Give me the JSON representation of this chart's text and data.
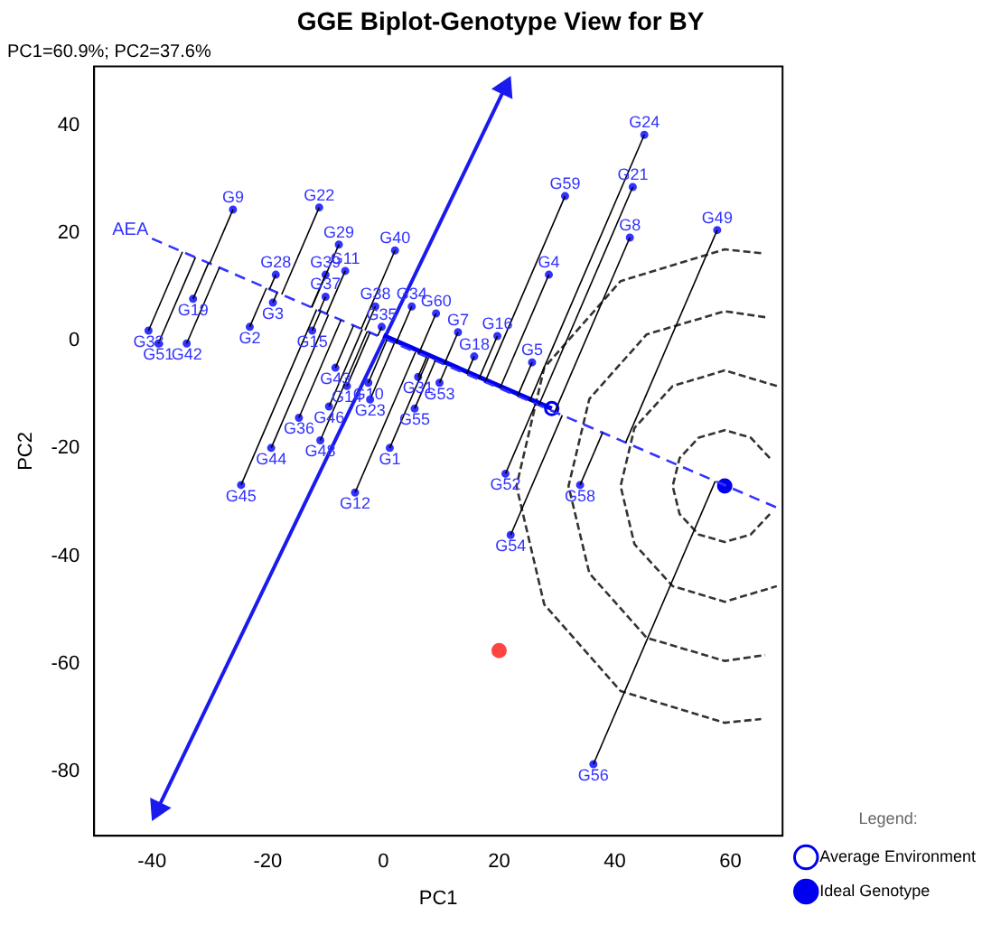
{
  "chart_data": {
    "type": "scatter",
    "title": "GGE Biplot-Genotype View for BY",
    "subtitle": "PC1=60.9%; PC2=37.6%",
    "xlabel": "PC1",
    "ylabel": "PC2",
    "legend_title": "Legend:",
    "legend": "bottom right",
    "grid": false,
    "xlim": [
      -50,
      69
    ],
    "ylim": [
      -92,
      51
    ],
    "xticks": [
      -40,
      -20,
      0,
      20,
      40,
      60
    ],
    "yticks": [
      -80,
      -60,
      -40,
      -20,
      0,
      20,
      40
    ],
    "series": [
      {
        "color": "#3333ff",
        "marker": "circle",
        "x": [
          45.1,
          43.1,
          42.6,
          57.7,
          31.4,
          28.6,
          19.7,
          25.7,
          15.7,
          12.9,
          9.1,
          21.1,
          22,
          34,
          36.3,
          -4.9,
          -24.6,
          -19.4,
          -10.9,
          -9.4,
          -14.6,
          -8.3,
          -12.3,
          -23.1,
          -26,
          -11.1,
          -7.7,
          -6.6,
          -18.6,
          -19.1,
          -10,
          -10,
          -32.9,
          -40.6,
          -38.9,
          -34,
          2,
          -1.4,
          4.9,
          -0.3,
          -2.6,
          -2.3,
          -6.3,
          6,
          9.7,
          5.4,
          1.1
        ],
        "values": [
          38.3,
          28.6,
          19.2,
          20.6,
          26.9,
          12.3,
          0.9,
          -4,
          -2.9,
          1.6,
          5.1,
          -24.7,
          -36.1,
          -26.8,
          -78.7,
          -28.2,
          -26.8,
          -19.9,
          -18.5,
          -12.2,
          -14.3,
          -5,
          1.9,
          2.6,
          24.4,
          24.8,
          17.9,
          13,
          12.3,
          7.1,
          12.3,
          8.2,
          7.8,
          1.9,
          -0.5,
          -0.5,
          16.8,
          6.4,
          6.4,
          2.6,
          -7.8,
          -10.9,
          -8.4,
          -6.7,
          -7.8,
          -12.6,
          -19.9
        ],
        "value_labels": [
          "G24",
          "G21",
          "G8",
          "G49",
          "G59",
          "G4",
          "G16",
          "G5",
          "G18",
          "G7",
          "G60",
          "G52",
          "G54",
          "G58",
          "G56",
          "G12",
          "G45",
          "G44",
          "G48",
          "G46",
          "G36",
          "G43",
          "G15",
          "G2",
          "G9",
          "G22",
          "G29",
          "G11",
          "G28",
          "G3",
          "G39",
          "G37",
          "G19",
          "G33",
          "G51",
          "G42",
          "G40",
          "G38",
          "G34",
          "G35",
          "G10",
          "G23",
          "G14",
          "G31",
          "G53",
          "G55",
          "G1"
        ]
      },
      {
        "type": "line",
        "name": "AEA",
        "color": "#3333ff",
        "line_style": "dashed",
        "marker": "none",
        "x": [
          -40,
          68
        ],
        "values": [
          19,
          -31
        ]
      },
      {
        "type": "line",
        "color": "#0000ee",
        "line_style": "solid",
        "marker": "none",
        "x": [
          0,
          29.1
        ],
        "values": [
          1,
          -12.6
        ]
      },
      {
        "type": "line",
        "color": "#1a1aee",
        "line_style": "solid",
        "marker": "triangle",
        "x": [
          -39,
          21
        ],
        "values": [
          -87,
          47
        ]
      },
      {
        "type": "line",
        "color": "#333333",
        "line_style": "dashed",
        "marker": "none",
        "x": [
          66.8,
          63.5,
          59,
          54.5,
          51.2,
          50,
          51.2,
          54.5,
          59,
          63.5,
          66.8
        ],
        "values": [
          -21.8,
          -18,
          -16.6,
          -18,
          -21.8,
          -27,
          -32.2,
          -36,
          -37.4,
          -36,
          -32.2
        ]
      },
      {
        "type": "line",
        "color": "#333333",
        "line_style": "dashed",
        "marker": "none",
        "x": [
          68,
          59,
          50,
          43.4,
          41,
          43.4,
          50,
          59,
          68
        ],
        "values": [
          -8.4,
          -5.5,
          -8.4,
          -16.2,
          -27,
          -37.8,
          -45.6,
          -48.5,
          -45.6
        ]
      },
      {
        "type": "line",
        "color": "#333333",
        "line_style": "dashed",
        "marker": "none",
        "x": [
          66,
          59,
          45.5,
          35.6,
          32,
          35.6,
          45.5,
          59,
          66
        ],
        "values": [
          4.4,
          5.5,
          1.2,
          -10.8,
          -27,
          -43.2,
          -55.2,
          -59.5,
          -58.4
        ]
      },
      {
        "type": "line",
        "color": "#333333",
        "line_style": "dashed",
        "marker": "none",
        "x": [
          65.3,
          59,
          41,
          27.8,
          23,
          27.8,
          41,
          59,
          65.3
        ],
        "values": [
          16.3,
          17,
          11.1,
          -5,
          -27,
          -49,
          -65.1,
          -71,
          -70.3
        ]
      },
      {
        "type": "scatter",
        "name": "Average Environment",
        "color": "#0000ee",
        "marker": "circle",
        "x": [
          29.1
        ],
        "values": [
          -12.6
        ]
      },
      {
        "type": "scatter",
        "name": "Ideal Genotype",
        "color": "#0000ee",
        "marker": "circle",
        "x": [
          59
        ],
        "values": [
          -27
        ]
      },
      {
        "type": "scatter",
        "color": "#ff4444",
        "marker": "circle",
        "x": [
          20
        ],
        "values": [
          -57.6
        ]
      }
    ]
  }
}
